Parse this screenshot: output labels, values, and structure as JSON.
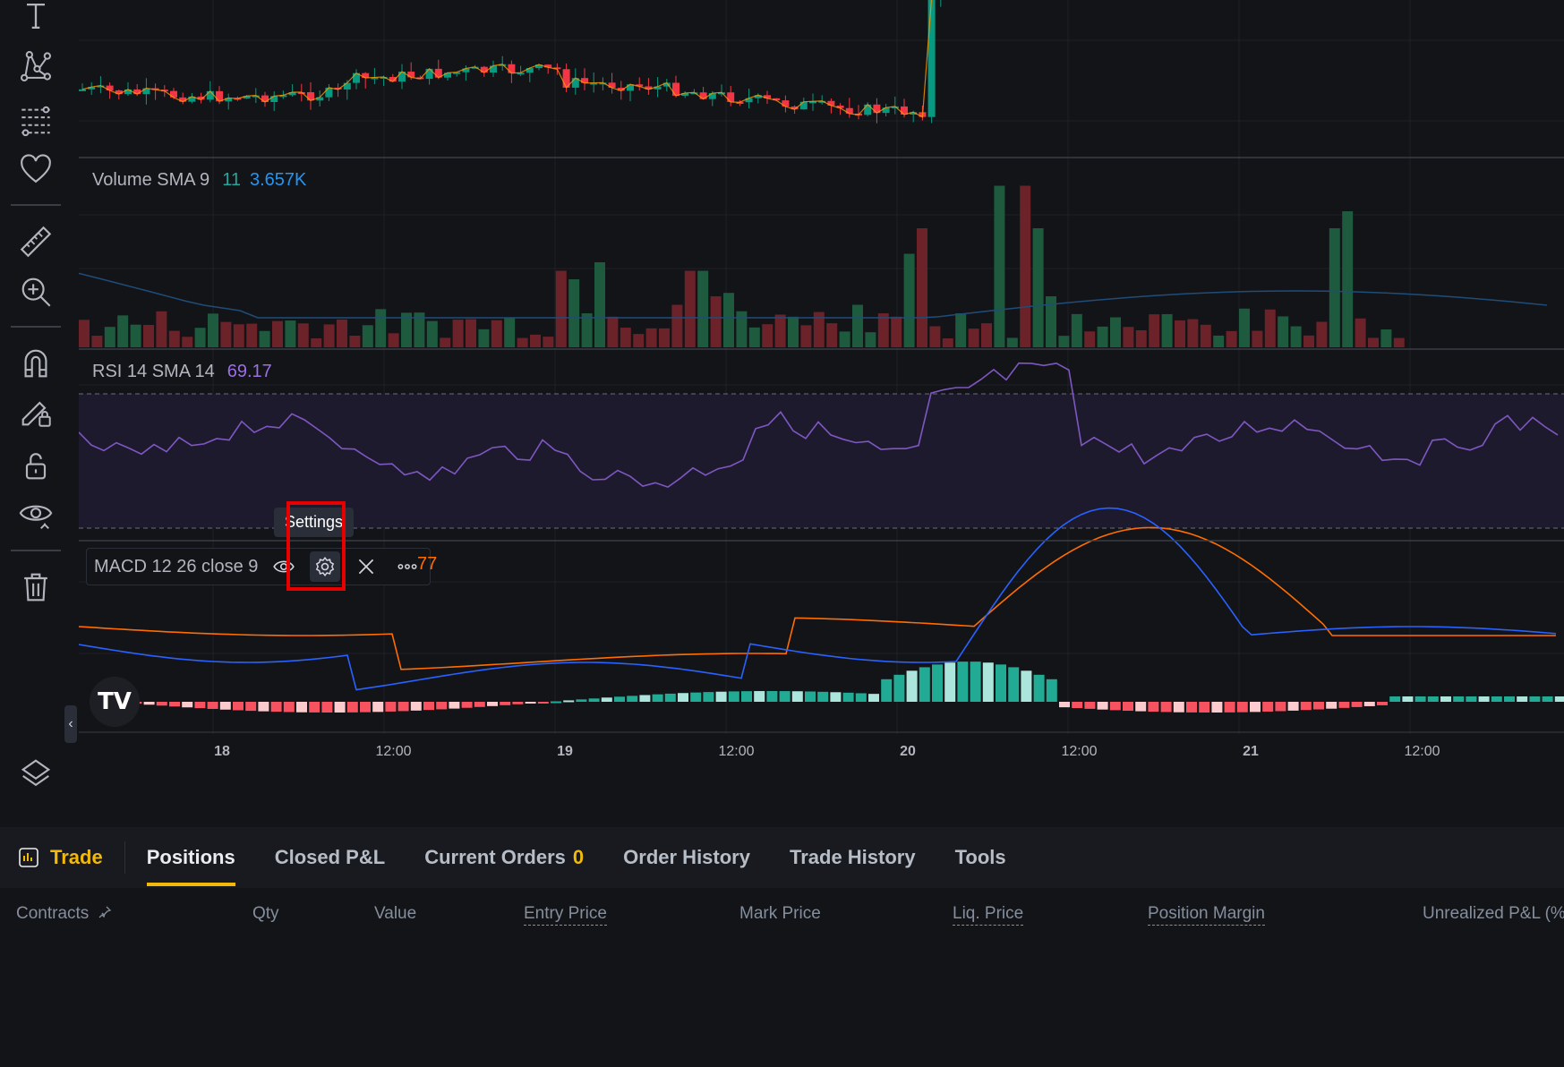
{
  "toolbar": {
    "tools": [
      {
        "icon": "text-icon"
      },
      {
        "icon": "pattern-icon"
      },
      {
        "icon": "fib-icon"
      },
      {
        "icon": "heart-icon"
      },
      {
        "icon": "ruler-icon"
      },
      {
        "icon": "zoom-in-icon"
      },
      {
        "icon": "magnet-icon"
      },
      {
        "icon": "stay-drawing-icon"
      },
      {
        "icon": "lock-icon"
      },
      {
        "icon": "eye-icon"
      },
      {
        "icon": "trash-icon"
      },
      {
        "icon": "layers-icon"
      }
    ]
  },
  "volume_legend": {
    "label": "Volume SMA 9",
    "value1": "11",
    "value2": "3.657K"
  },
  "rsi_legend": {
    "label": "RSI 14 SMA 14",
    "value": "69.17"
  },
  "macd_legend": {
    "label": "MACD 12 26 close 9",
    "value": "77"
  },
  "tooltip": {
    "text": "Settings"
  },
  "time_axis": {
    "labels": [
      "18",
      "12:00",
      "19",
      "12:00",
      "20",
      "12:00",
      "21",
      "12:00"
    ]
  },
  "logo": {
    "text": "TV"
  },
  "bottom_tabs": {
    "trade": "Trade",
    "positions": "Positions",
    "closed_pnl": "Closed P&L",
    "current_orders": "Current Orders",
    "current_orders_count": "0",
    "order_history": "Order History",
    "trade_history": "Trade History",
    "tools": "Tools"
  },
  "columns": {
    "contracts": "Contracts",
    "qty": "Qty",
    "value": "Value",
    "entry_price": "Entry Price",
    "mark_price": "Mark Price",
    "liq_price": "Liq. Price",
    "position_margin": "Position Margin",
    "unrealized_pnl": "Unrealized P&L (%"
  },
  "colors": {
    "up": "#26a69a",
    "down": "#ef5350",
    "up_candle": "#089981",
    "down_candle": "#f23645",
    "rsi": "#7e57c2",
    "macd": "#2962ff",
    "signal": "#ff6d00",
    "accent": "#f0b90b"
  }
}
